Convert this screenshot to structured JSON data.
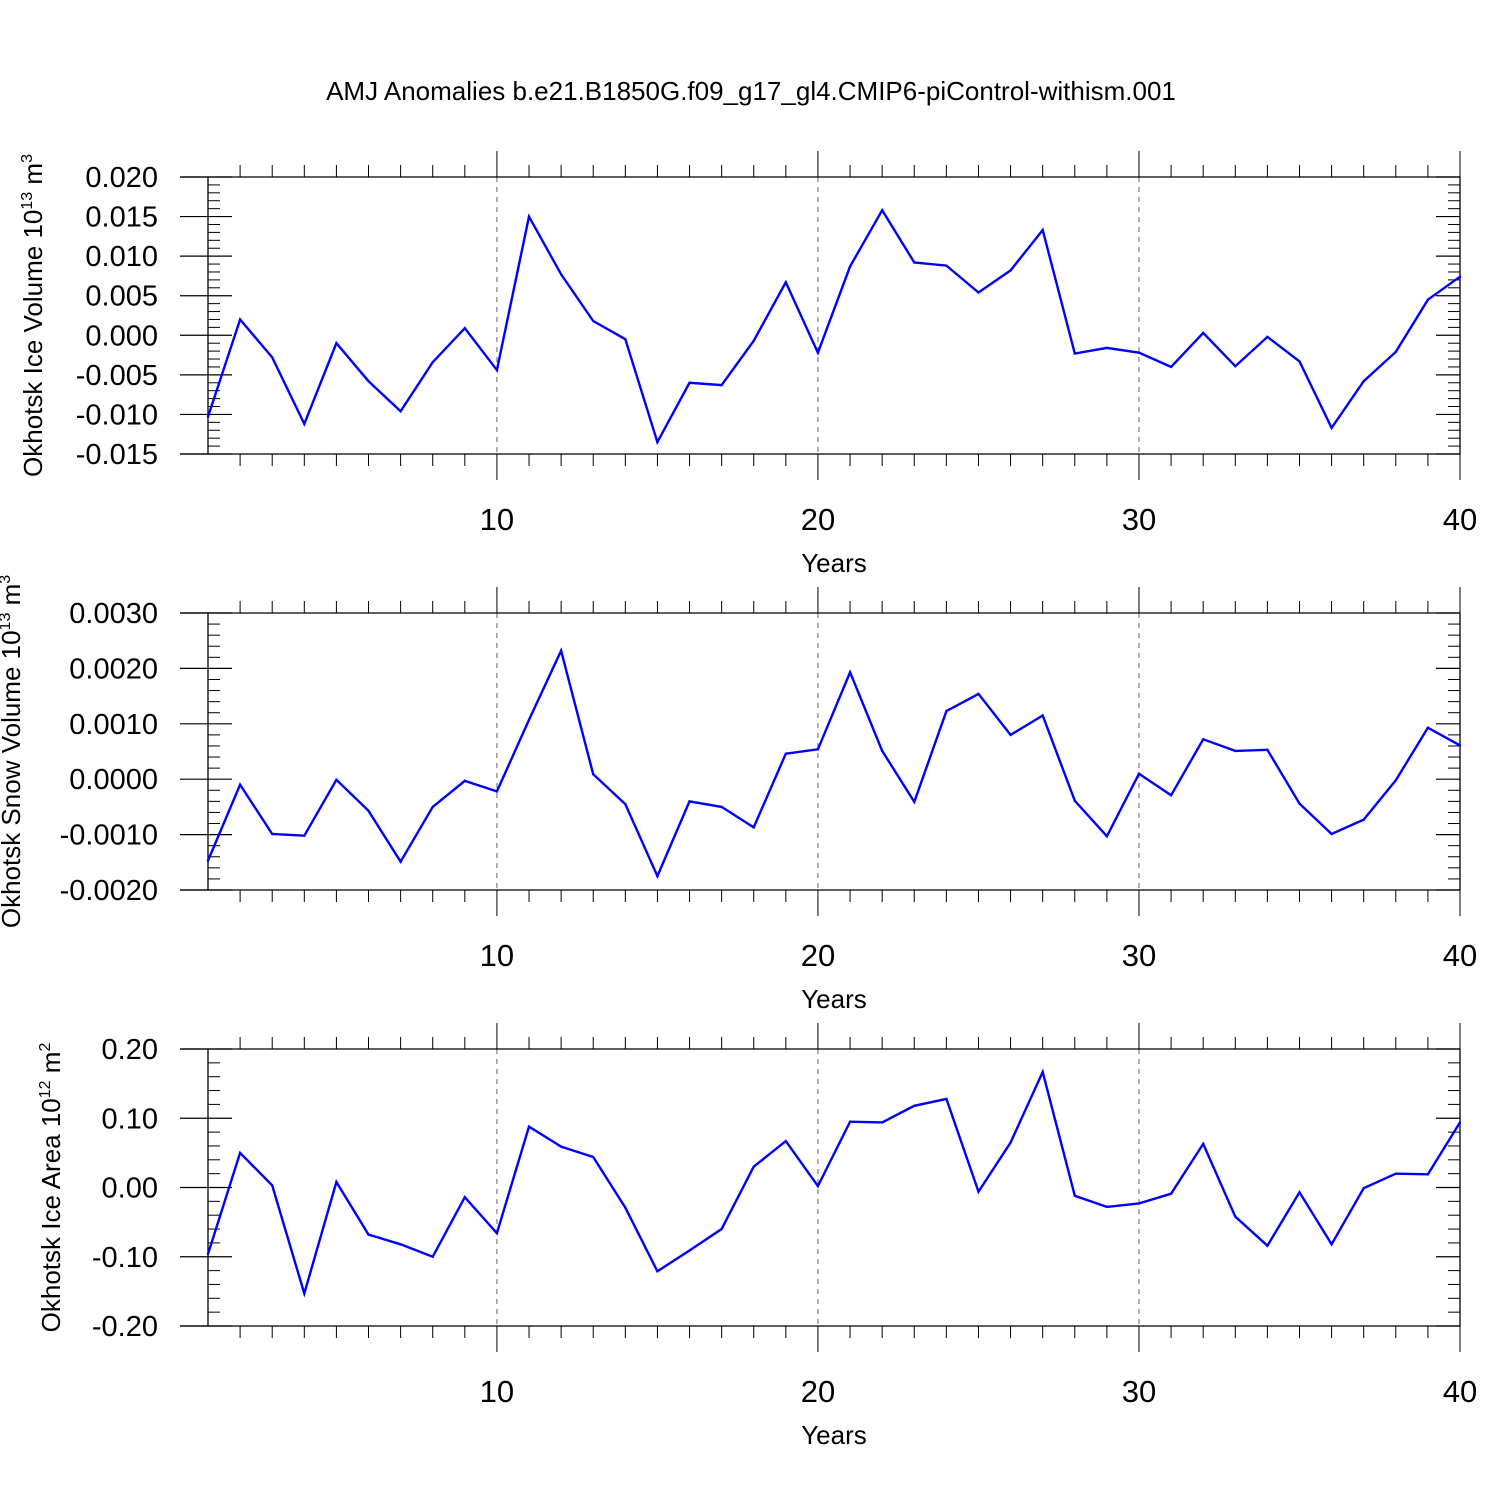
{
  "title": "AMJ Anomalies b.e21.B1850G.f09_g17_gl4.CMIP6-piControl-withism.001",
  "chart_data": [
    {
      "type": "line",
      "ylabel": "Okhotsk Ice Volume",
      "yunit_base": "10",
      "yunit_exp": "13",
      "yunit_unit": "m",
      "yunit_unit_exp": "3",
      "xlabel": "Years",
      "xlim": [
        1,
        40
      ],
      "ylim": [
        -0.015,
        0.02
      ],
      "yticks": [
        -0.015,
        -0.01,
        -0.005,
        0,
        0.005,
        0.01,
        0.015,
        0.02
      ],
      "ytick_labels": [
        "-0.015",
        "-0.010",
        "-0.005",
        "0.000",
        "0.005",
        "0.010",
        "0.015",
        "0.020"
      ],
      "xticks": [
        10,
        20,
        30,
        40
      ],
      "xtick_labels": [
        "10",
        "20",
        "30",
        "40"
      ],
      "color": "#0000ff",
      "x": [
        1,
        2,
        3,
        4,
        5,
        6,
        7,
        8,
        9,
        10,
        11,
        12,
        13,
        14,
        15,
        16,
        17,
        18,
        19,
        20,
        21,
        22,
        23,
        24,
        25,
        26,
        27,
        28,
        29,
        30,
        31,
        32,
        33,
        34,
        35,
        36,
        37,
        38,
        39,
        40
      ],
      "y": [
        -0.0103,
        0.002,
        -0.0028,
        -0.0112,
        -0.001,
        -0.0058,
        -0.0096,
        -0.0034,
        0.0009,
        -0.0044,
        0.015,
        0.0077,
        0.0018,
        -0.0005,
        -0.0135,
        -0.006,
        -0.0063,
        -0.0007,
        0.0067,
        -0.0022,
        0.0087,
        0.0158,
        0.0092,
        0.0088,
        0.0054,
        0.0082,
        0.0133,
        -0.0023,
        -0.0016,
        -0.0022,
        -0.004,
        0.0003,
        -0.0039,
        -0.0002,
        -0.0033,
        -0.0117,
        -0.0058,
        -0.0021,
        0.0045,
        0.0074
      ]
    },
    {
      "type": "line",
      "ylabel": "Okhotsk Snow Volume",
      "yunit_base": "10",
      "yunit_exp": "13",
      "yunit_unit": "m",
      "yunit_unit_exp": "3",
      "xlabel": "Years",
      "xlim": [
        1,
        40
      ],
      "ylim": [
        -0.002,
        0.003
      ],
      "yticks": [
        -0.002,
        -0.001,
        0,
        0.001,
        0.002,
        0.003
      ],
      "ytick_labels": [
        "-0.0020",
        "-0.0010",
        "0.0000",
        "0.0010",
        "0.0020",
        "0.0030"
      ],
      "xticks": [
        10,
        20,
        30,
        40
      ],
      "xtick_labels": [
        "10",
        "20",
        "30",
        "40"
      ],
      "color": "#0000ff",
      "x": [
        1,
        2,
        3,
        4,
        5,
        6,
        7,
        8,
        9,
        10,
        11,
        12,
        13,
        14,
        15,
        16,
        17,
        18,
        19,
        20,
        21,
        22,
        23,
        24,
        25,
        26,
        27,
        28,
        29,
        30,
        31,
        32,
        33,
        34,
        35,
        36,
        37,
        38,
        39,
        40
      ],
      "y": [
        -0.00147,
        -0.0001,
        -0.00099,
        -0.00102,
        -1e-05,
        -0.00057,
        -0.00149,
        -0.0005,
        -3e-05,
        -0.00022,
        0.00107,
        0.00232,
        9e-05,
        -0.00045,
        -0.00175,
        -0.0004,
        -0.0005,
        -0.00087,
        0.00046,
        0.00054,
        0.00193,
        0.00051,
        -0.00041,
        0.00123,
        0.00154,
        0.0008,
        0.00115,
        -0.00039,
        -0.00103,
        0.0001,
        -0.00029,
        0.00072,
        0.00051,
        0.00053,
        -0.00044,
        -0.00099,
        -0.00073,
        -2e-05,
        0.00093,
        0.00061
      ]
    },
    {
      "type": "line",
      "ylabel": "Okhotsk Ice Area",
      "yunit_base": "10",
      "yunit_exp": "12",
      "yunit_unit": "m",
      "yunit_unit_exp": "2",
      "xlabel": "Years",
      "xlim": [
        1,
        40
      ],
      "ylim": [
        -0.2,
        0.2
      ],
      "yticks": [
        -0.2,
        -0.1,
        0,
        0.1,
        0.2
      ],
      "ytick_labels": [
        "-0.20",
        "-0.10",
        "0.00",
        "0.10",
        "0.20"
      ],
      "xticks": [
        10,
        20,
        30,
        40
      ],
      "xtick_labels": [
        "10",
        "20",
        "30",
        "40"
      ],
      "color": "#0000ff",
      "x": [
        1,
        2,
        3,
        4,
        5,
        6,
        7,
        8,
        9,
        10,
        11,
        12,
        13,
        14,
        15,
        16,
        17,
        18,
        19,
        20,
        21,
        22,
        23,
        24,
        25,
        26,
        27,
        28,
        29,
        30,
        31,
        32,
        33,
        34,
        35,
        36,
        37,
        38,
        39,
        40
      ],
      "y": [
        -0.096,
        0.05,
        0.003,
        -0.153,
        0.008,
        -0.068,
        -0.082,
        -0.1,
        -0.014,
        -0.066,
        0.088,
        0.059,
        0.044,
        -0.029,
        -0.121,
        -0.091,
        -0.06,
        0.03,
        0.067,
        0.002,
        0.095,
        0.094,
        0.118,
        0.128,
        -0.006,
        0.065,
        0.167,
        -0.012,
        -0.028,
        -0.023,
        -0.009,
        0.063,
        -0.042,
        -0.084,
        -0.007,
        -0.082,
        -0.001,
        0.02,
        0.019,
        0.094
      ]
    }
  ]
}
